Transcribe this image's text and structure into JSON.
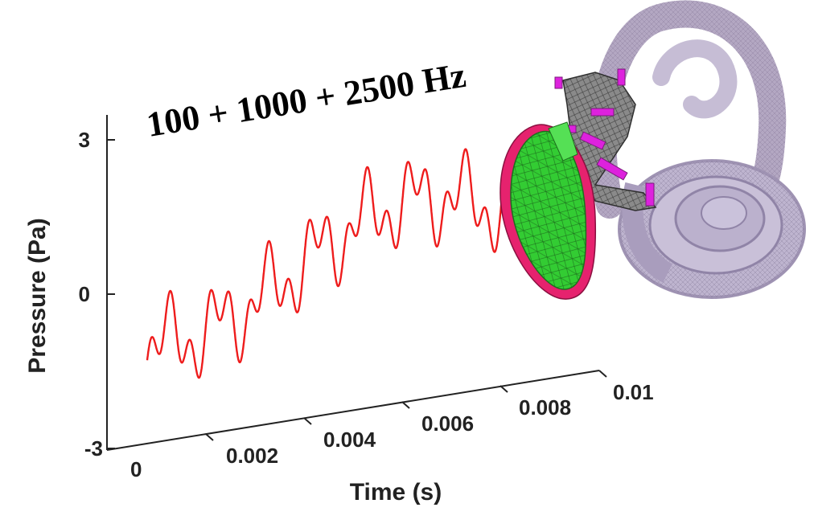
{
  "chart_data": {
    "type": "line",
    "title": "100 + 1000 + 2500 Hz",
    "xlabel": "Time (s)",
    "ylabel": "Pressure (Pa)",
    "xlim": [
      0,
      0.01
    ],
    "ylim": [
      -3,
      3
    ],
    "x_ticks": [
      "0",
      "0.002",
      "0.004",
      "0.006",
      "0.008",
      "0.01"
    ],
    "y_ticks": [
      "3",
      "0",
      "-3"
    ],
    "series": [
      {
        "components_hz": [
          100,
          1000,
          2500
        ],
        "color": "#ee1c1c",
        "x_start": 0,
        "x_end": 0.0077
      }
    ],
    "illustration": "ear-anatomy-model"
  },
  "colors": {
    "axis": "#222222",
    "signal": "#ee1c1c",
    "eardrum": "#33cc33",
    "eardrum_rim": "#e6226e",
    "ossicles": "#8a8a8a",
    "ligament": "#dd22dd",
    "cochlea": "#9a8aae"
  }
}
